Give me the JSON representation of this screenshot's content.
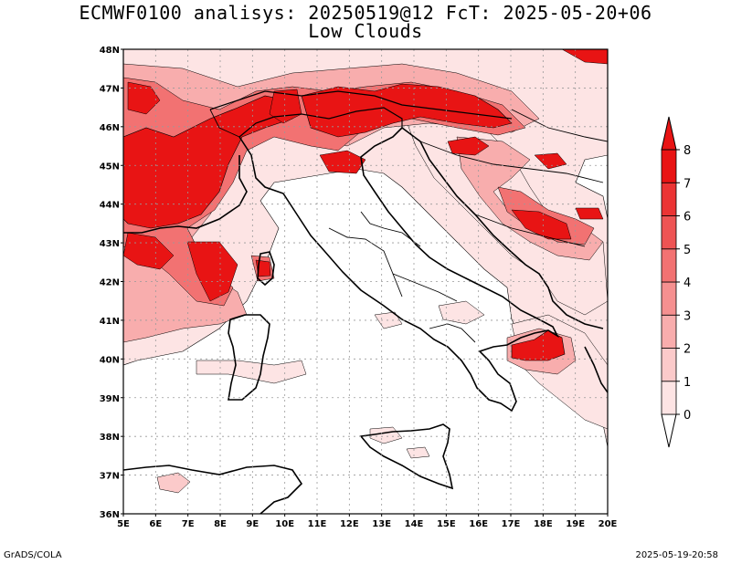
{
  "title": {
    "line1": "ECMWF0100 analisys: 20250519@12 FcT: 2025-05-20+06",
    "line2": "Low Clouds"
  },
  "map": {
    "lon_range": [
      5,
      20
    ],
    "lat_range": [
      36,
      48
    ],
    "lon_labels": [
      "5E",
      "6E",
      "7E",
      "8E",
      "9E",
      "10E",
      "11E",
      "12E",
      "13E",
      "14E",
      "15E",
      "16E",
      "17E",
      "18E",
      "19E",
      "20E"
    ],
    "lat_labels": [
      "36N",
      "37N",
      "38N",
      "39N",
      "40N",
      "41N",
      "42N",
      "43N",
      "44N",
      "45N",
      "46N",
      "47N",
      "48N"
    ],
    "grid": "dotted",
    "field": "low cloud cover (oktas)",
    "shading_note": "heaviest over Alps, Gulf of Lion, Corsica, Dinaric Alps, Apulia"
  },
  "colorbar": {
    "levels": [
      "0",
      "1",
      "2",
      "3",
      "4",
      "5",
      "6",
      "7",
      "8"
    ],
    "colors": [
      "#ffffff",
      "#fde4e4",
      "#fbcaca",
      "#f8adad",
      "#f59090",
      "#f27272",
      "#ee5454",
      "#eb3434",
      "#e81414"
    ],
    "extends": "both"
  },
  "footer": {
    "left": "GrADS/COLA",
    "right": "2025-05-19-20:58"
  }
}
